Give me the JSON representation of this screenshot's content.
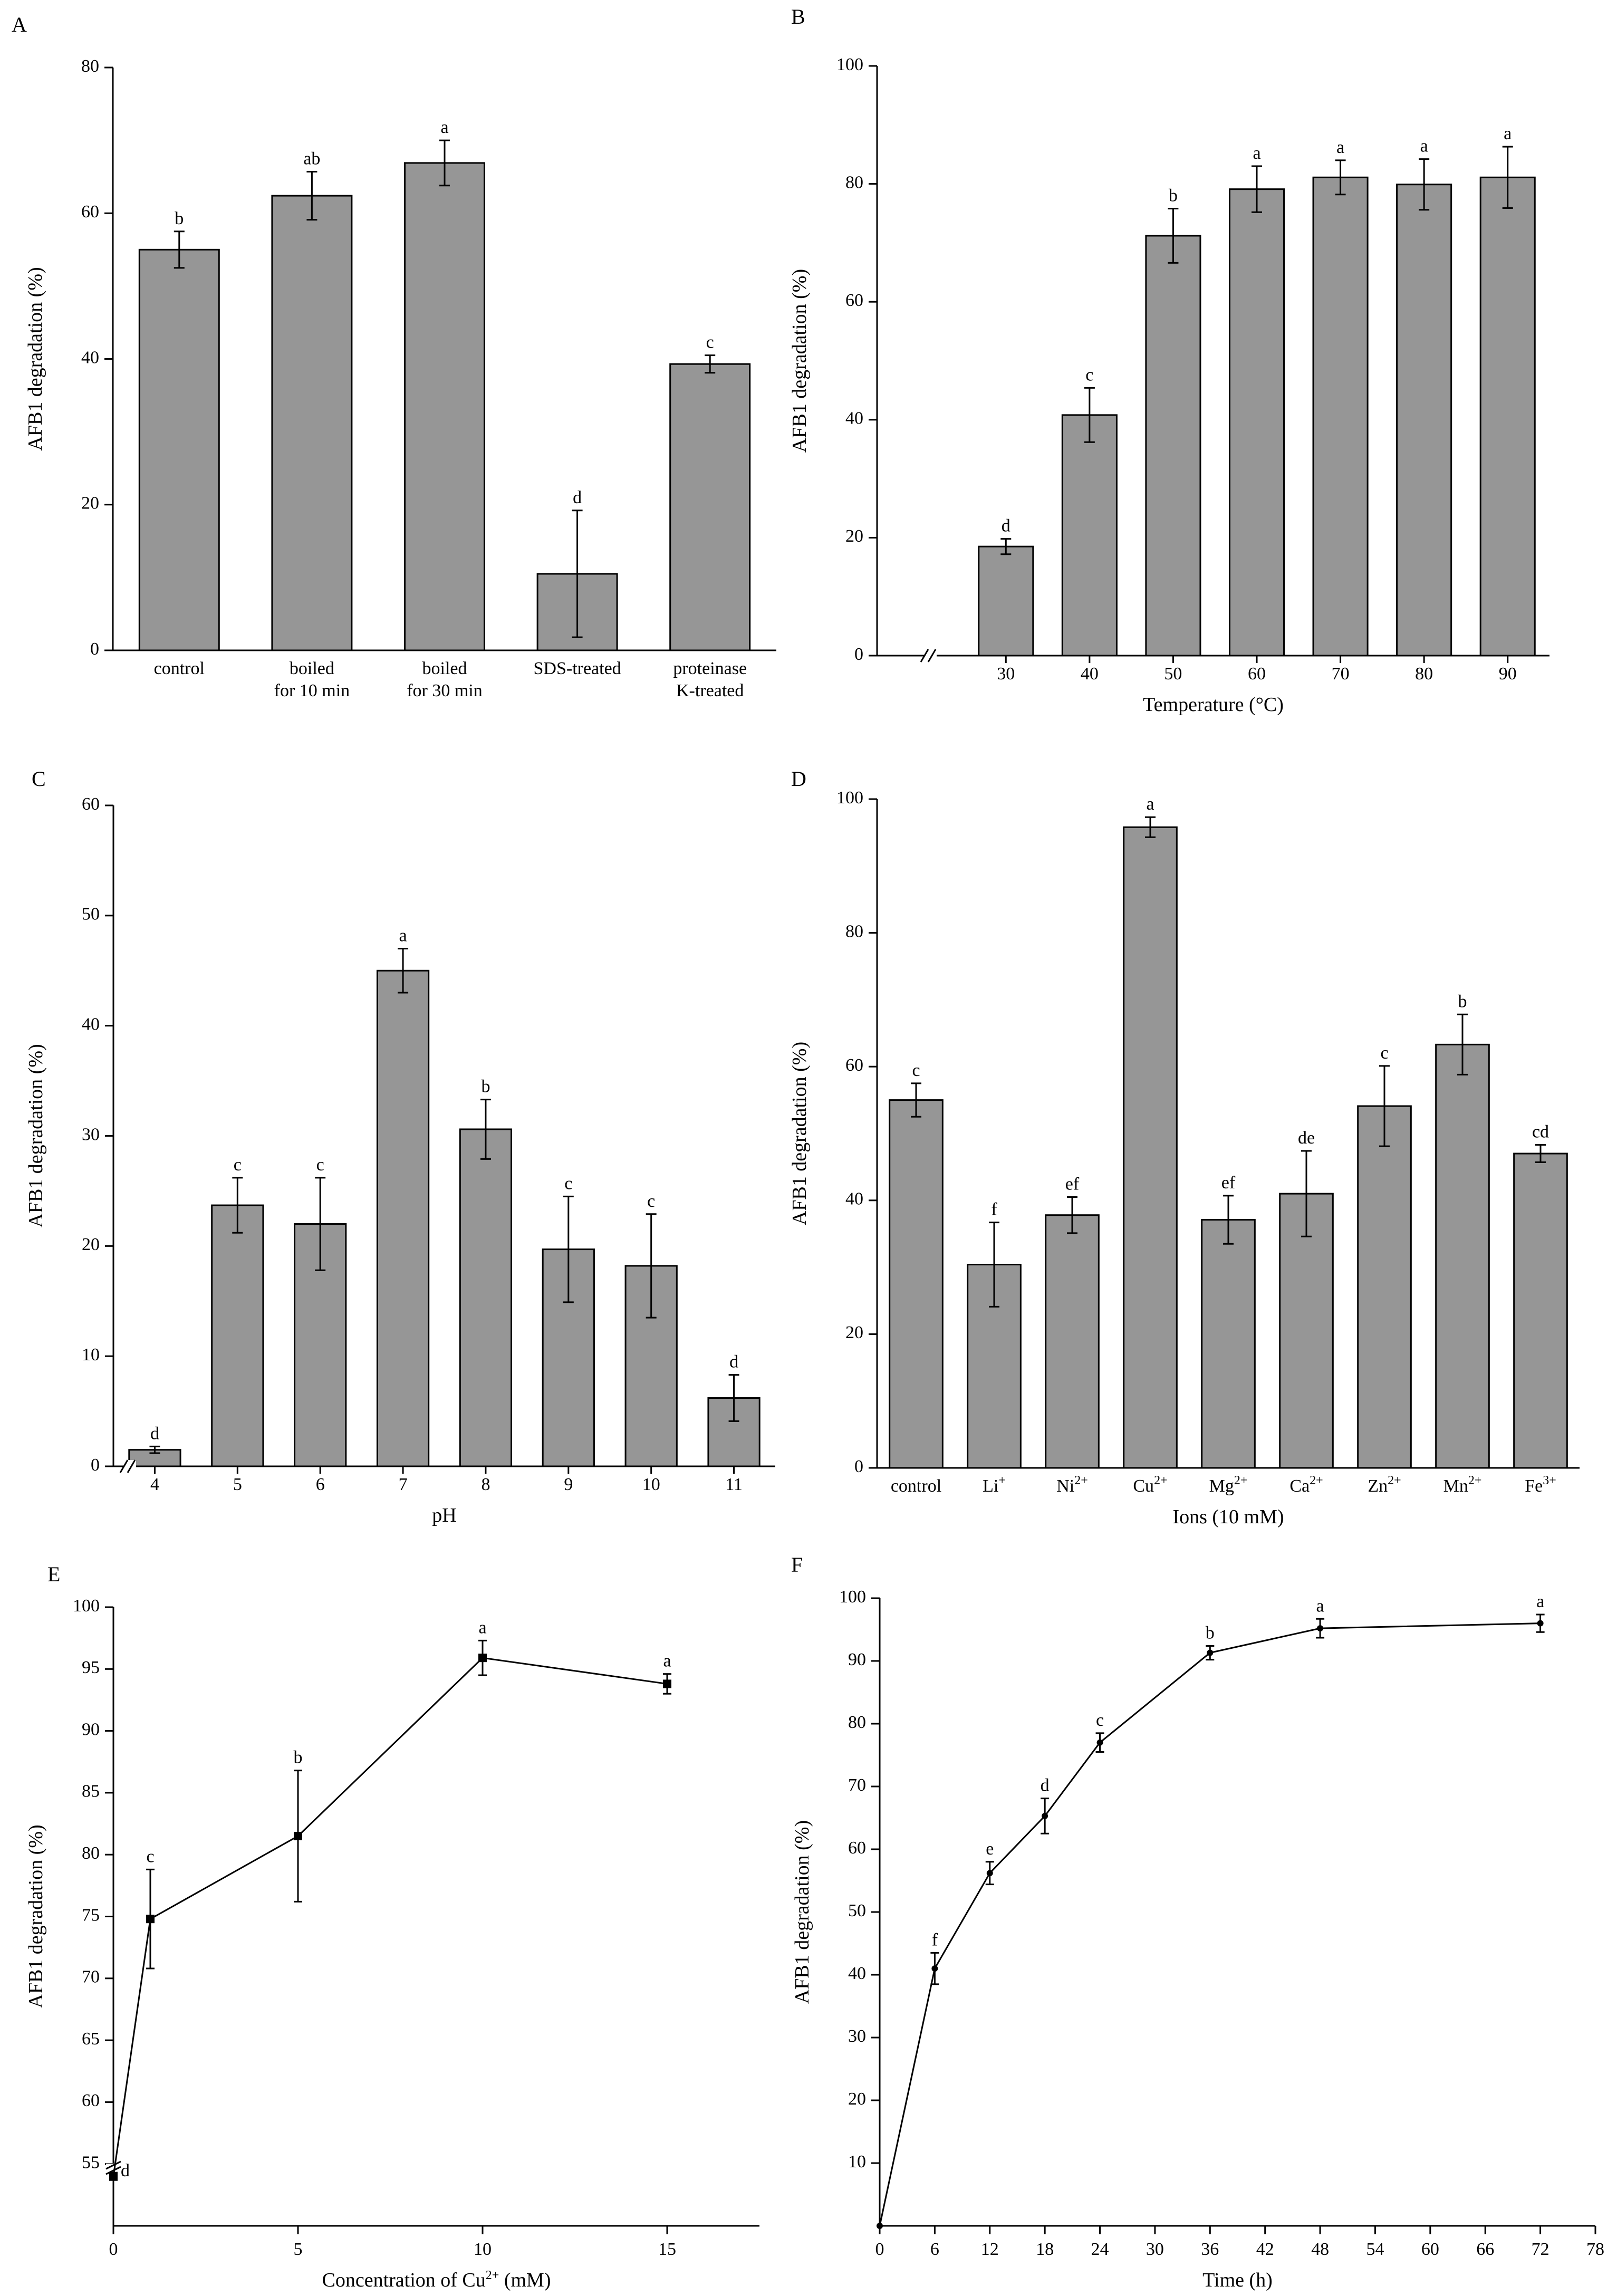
{
  "chart_data": [
    {
      "panel": "A",
      "type": "bar",
      "ylabel": "AFB1 degradation (%)",
      "xlabel": "",
      "ylim": [
        0,
        80
      ],
      "yticks": [
        0,
        20,
        40,
        60,
        80
      ],
      "categories": [
        [
          "control"
        ],
        [
          "boiled",
          "for 10 min"
        ],
        [
          "boiled",
          "for 30 min"
        ],
        [
          "SDS-treated"
        ],
        [
          "proteinase",
          "K-treated"
        ]
      ],
      "values": [
        55,
        62.4,
        66.9,
        10.5,
        39.3
      ],
      "errors": [
        2.5,
        3.3,
        3.1,
        8.7,
        1.2
      ],
      "letters": [
        "b",
        "ab",
        "a",
        "d",
        "c"
      ]
    },
    {
      "panel": "B",
      "type": "bar",
      "ylabel": "AFB1 degradation (%)",
      "xlabel": "Temperature (°C)",
      "ylim": [
        0,
        100
      ],
      "yticks": [
        0,
        20,
        40,
        60,
        80,
        100
      ],
      "axis_break": true,
      "categories": [
        "30",
        "40",
        "50",
        "60",
        "70",
        "80",
        "90"
      ],
      "values": [
        18.5,
        40.8,
        71.2,
        79.1,
        81.1,
        79.9,
        81.1
      ],
      "errors": [
        1.3,
        4.6,
        4.6,
        3.9,
        2.9,
        4.3,
        5.2
      ],
      "letters": [
        "d",
        "c",
        "b",
        "a",
        "a",
        "a",
        "a"
      ]
    },
    {
      "panel": "C",
      "type": "bar",
      "ylabel": "AFB1 degradation (%)",
      "xlabel": "pH",
      "ylim": [
        0,
        60
      ],
      "yticks": [
        0,
        10,
        20,
        30,
        40,
        50,
        60
      ],
      "axis_break": true,
      "categories": [
        "4",
        "5",
        "6",
        "7",
        "8",
        "9",
        "10",
        "11"
      ],
      "values": [
        1.5,
        23.7,
        22,
        45,
        30.6,
        19.7,
        18.2,
        6.2
      ],
      "errors": [
        0.3,
        2.5,
        4.2,
        2,
        2.7,
        4.8,
        4.7,
        2.1
      ],
      "letters": [
        "d",
        "c",
        "c",
        "a",
        "b",
        "c",
        "c",
        "d"
      ]
    },
    {
      "panel": "D",
      "type": "bar",
      "ylabel": "AFB1 degradation (%)",
      "xlabel": "Ions (10 mM)",
      "ylim": [
        0,
        100
      ],
      "yticks": [
        0,
        20,
        40,
        60,
        80,
        100
      ],
      "categories": [
        {
          "base": "control",
          "sup": ""
        },
        {
          "base": "Li",
          "sup": "+"
        },
        {
          "base": "Ni",
          "sup": "2+"
        },
        {
          "base": "Cu",
          "sup": "2+"
        },
        {
          "base": "Mg",
          "sup": "2+"
        },
        {
          "base": "Ca",
          "sup": "2+"
        },
        {
          "base": "Zn",
          "sup": "2+"
        },
        {
          "base": "Mn",
          "sup": "2+"
        },
        {
          "base": "Fe",
          "sup": "3+"
        }
      ],
      "values": [
        55,
        30.4,
        37.8,
        95.8,
        37.1,
        41,
        54.1,
        63.3,
        47
      ],
      "errors": [
        2.5,
        6.3,
        2.7,
        1.5,
        3.6,
        6.4,
        6,
        4.5,
        1.3
      ],
      "letters": [
        "c",
        "f",
        "ef",
        "a",
        "ef",
        "de",
        "c",
        "b",
        "cd"
      ]
    },
    {
      "panel": "E",
      "type": "line",
      "ylabel": "AFB1 degradation (%)",
      "xlabel_base": "Concentration of Cu",
      "xlabel_sup": "2+",
      "xlabel_tail": " (mM)",
      "xlim": [
        0,
        17.5
      ],
      "xticks": [
        0,
        5,
        10,
        15
      ],
      "ylim": [
        50,
        100
      ],
      "yticks": [
        55,
        60,
        65,
        70,
        75,
        80,
        85,
        90,
        95,
        100
      ],
      "axis_break": true,
      "x": [
        0,
        1,
        5,
        10,
        15
      ],
      "y": [
        54,
        74.8,
        81.5,
        95.9,
        93.8
      ],
      "errors": [
        0.3,
        4,
        5.3,
        1.4,
        0.8
      ],
      "letters": [
        "d",
        "c",
        "b",
        "a",
        "a"
      ],
      "marker": "square"
    },
    {
      "panel": "F",
      "type": "line",
      "ylabel": "AFB1 degradation (%)",
      "xlabel": "Time (h)",
      "xlim": [
        0,
        78
      ],
      "xticks": [
        0,
        6,
        12,
        18,
        24,
        30,
        36,
        42,
        48,
        54,
        60,
        66,
        72,
        78
      ],
      "ylim": [
        0,
        100
      ],
      "yticks": [
        10,
        20,
        30,
        40,
        50,
        60,
        70,
        80,
        90,
        100
      ],
      "x": [
        0,
        6,
        12,
        18,
        24,
        36,
        48,
        72
      ],
      "y": [
        0,
        41,
        56.2,
        65.3,
        77,
        91.3,
        95.2,
        96
      ],
      "errors": [
        0,
        2.5,
        1.8,
        2.8,
        1.5,
        1.1,
        1.5,
        1.4
      ],
      "letters": [
        "",
        "f",
        "e",
        "d",
        "c",
        "b",
        "a",
        "a"
      ],
      "marker": "dot"
    }
  ]
}
